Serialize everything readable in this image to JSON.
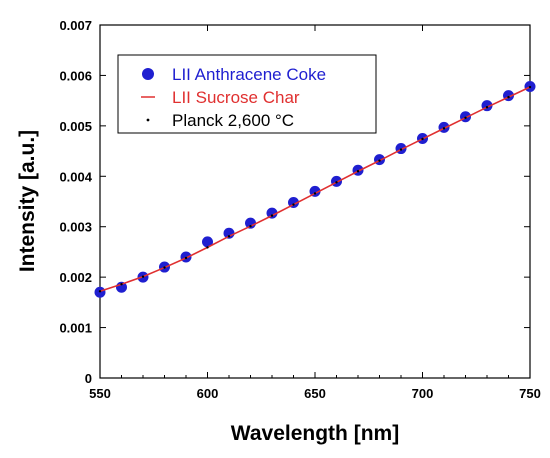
{
  "chart_data": {
    "type": "scatter",
    "title": "",
    "xlabel": "Wavelength [nm]",
    "ylabel": "Intensity [a.u.]",
    "xlim": [
      550,
      750
    ],
    "ylim": [
      0,
      0.007
    ],
    "grid": false,
    "legend_position": "top-left",
    "x_ticks": [
      550,
      600,
      650,
      700,
      750
    ],
    "x_tick_labels": [
      "550",
      "600",
      "650",
      "700",
      "750"
    ],
    "y_ticks": [
      0,
      0.001,
      0.002,
      0.003,
      0.004,
      0.005,
      0.006,
      0.007
    ],
    "y_tick_labels": [
      "0",
      "0.001",
      "0.002",
      "0.003",
      "0.004",
      "0.005",
      "0.006",
      "0.007"
    ],
    "series": [
      {
        "name": "LII Anthracene Coke",
        "marker": "circle",
        "color": "#1f1fd0",
        "x": [
          550,
          560,
          570,
          580,
          590,
          600,
          610,
          620,
          630,
          640,
          650,
          660,
          670,
          680,
          690,
          700,
          710,
          720,
          730,
          740,
          750
        ],
        "y": [
          0.0017,
          0.0018,
          0.002,
          0.0022,
          0.0024,
          0.0027,
          0.00287,
          0.00307,
          0.00327,
          0.00348,
          0.0037,
          0.0039,
          0.00412,
          0.00433,
          0.00455,
          0.00475,
          0.00497,
          0.00518,
          0.0054,
          0.0056,
          0.00578
        ]
      },
      {
        "name": "LII Sucrose Char",
        "marker": "line",
        "color": "#e03030",
        "x": [
          550,
          560,
          570,
          580,
          590,
          600,
          610,
          620,
          630,
          640,
          650,
          660,
          670,
          680,
          690,
          700,
          710,
          720,
          730,
          740,
          750
        ],
        "y": [
          0.00172,
          0.00186,
          0.00201,
          0.00219,
          0.00238,
          0.00259,
          0.00281,
          0.00301,
          0.00322,
          0.00344,
          0.00366,
          0.00388,
          0.0041,
          0.00431,
          0.00453,
          0.00474,
          0.00495,
          0.00516,
          0.00537,
          0.00557,
          0.00577
        ]
      },
      {
        "name": "Planck 2,600 °C",
        "marker": "dot",
        "color": "#000000",
        "x": [
          550,
          560,
          570,
          580,
          590,
          600,
          610,
          620,
          630,
          640,
          650,
          660,
          670,
          680,
          690,
          700,
          710,
          720,
          730,
          740,
          750
        ],
        "y": [
          0.00172,
          0.00186,
          0.00201,
          0.00219,
          0.00238,
          0.00259,
          0.00281,
          0.00301,
          0.00322,
          0.00344,
          0.00366,
          0.00388,
          0.0041,
          0.00431,
          0.00453,
          0.00474,
          0.00495,
          0.00516,
          0.00537,
          0.00557,
          0.00577
        ]
      }
    ]
  }
}
